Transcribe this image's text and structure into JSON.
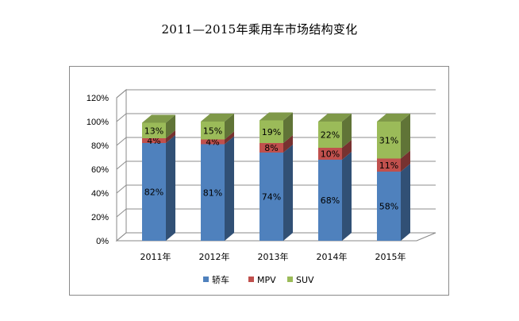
{
  "chart_data": {
    "type": "bar",
    "stacked": true,
    "title": "2011—2015年乘用车市场结构变化",
    "categories": [
      "2011年",
      "2012年",
      "2013年",
      "2014年",
      "2015年"
    ],
    "series": [
      {
        "name": "轿车",
        "values": [
          82,
          81,
          74,
          68,
          58
        ],
        "labels": [
          "82%",
          "81%",
          "74%",
          "68%",
          "58%"
        ],
        "color": "#4f81bd"
      },
      {
        "name": "MPV",
        "values": [
          4,
          4,
          8,
          10,
          11
        ],
        "labels": [
          "4%",
          "4%",
          "8%",
          "10%",
          "11%"
        ],
        "color": "#c0504d"
      },
      {
        "name": "SUV",
        "values": [
          13,
          15,
          19,
          22,
          31
        ],
        "labels": [
          "13%",
          "15%",
          "19%",
          "22%",
          "31%"
        ],
        "color": "#9bbb59"
      }
    ],
    "ylim": [
      0,
      120
    ],
    "yticks": [
      "0%",
      "20%",
      "40%",
      "60%",
      "80%",
      "100%",
      "120%"
    ],
    "grid": true,
    "legend": "bottom"
  }
}
